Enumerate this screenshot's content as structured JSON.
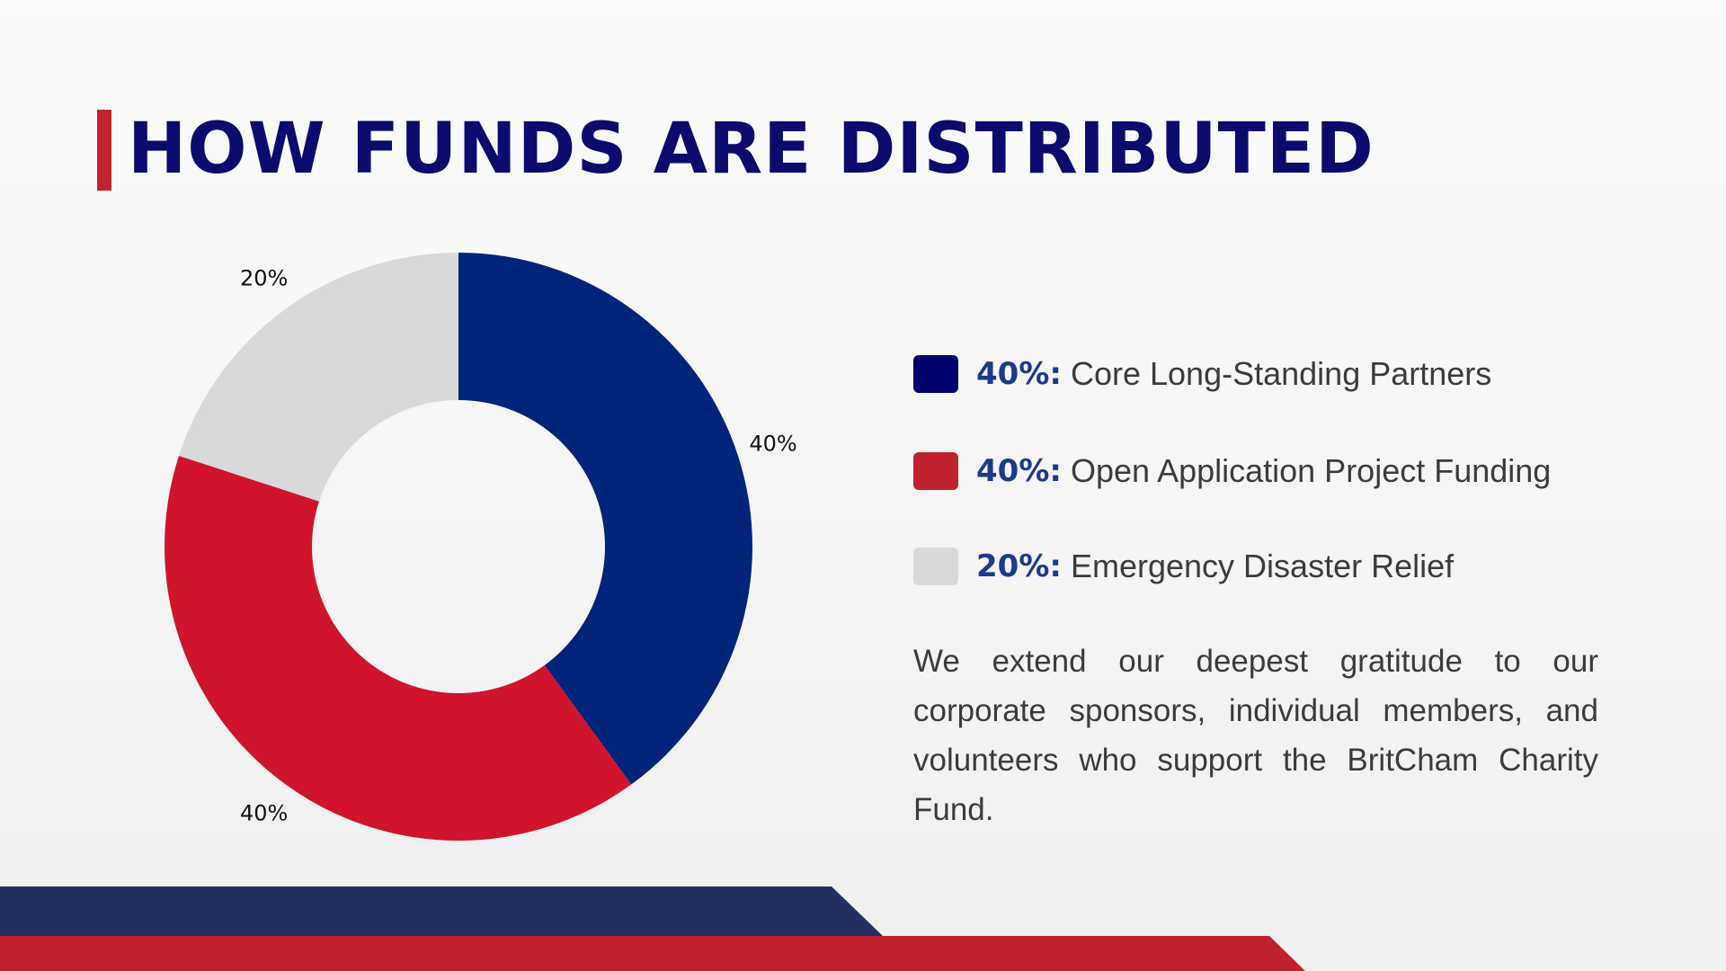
{
  "title": "HOW FUNDS ARE DISTRIBUTED",
  "colors": {
    "accent_red": "#c0242e",
    "title_navy": "#0d0a6e",
    "slice_navy": "#00247a",
    "slice_red": "#d0142c",
    "slice_grey": "#d9d9d9",
    "footer_navy": "#232e63",
    "footer_red": "#c0222c",
    "legend_pct": "#1b3a8c"
  },
  "chart_data": {
    "type": "pie",
    "style": "donut",
    "start": "top",
    "direction": "clockwise",
    "categories": [
      "Core Long-Standing Partners",
      "Open Application Project Funding",
      "Emergency Disaster Relief"
    ],
    "values": [
      40,
      40,
      20
    ],
    "data_labels": [
      "40%",
      "40%",
      "20%"
    ],
    "slice_colors": [
      "#00247a",
      "#d0142c",
      "#d9d9d9"
    ]
  },
  "legend": [
    {
      "pct": "40%:",
      "label": "Core Long-Standing Partners",
      "color": "#00006e"
    },
    {
      "pct": "40%:",
      "label": "Open Application Project Funding",
      "color": "#c0222c"
    },
    {
      "pct": "20%:",
      "label": "Emergency Disaster Relief",
      "color": "#d9d9d9"
    }
  ],
  "note": "We extend our deepest gratitude to our corporate sponsors, individual members, and volunteers who support the BritCham Charity Fund."
}
